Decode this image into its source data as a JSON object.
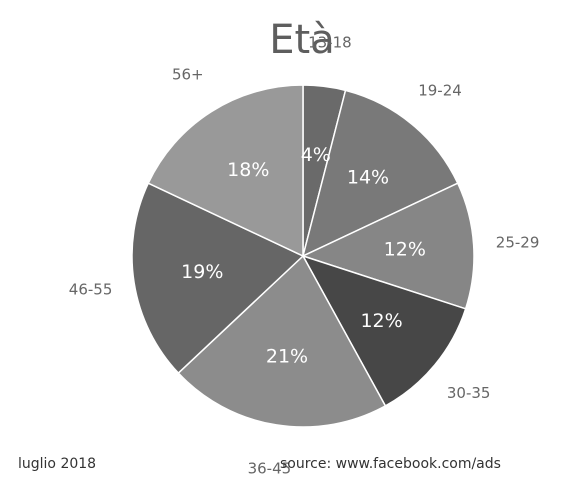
{
  "chart_data": {
    "type": "pie",
    "title": "Età",
    "categories": [
      "13-18",
      "19-24",
      "25-29",
      "30-35",
      "36-45",
      "46-55",
      "56+"
    ],
    "values": [
      4,
      14,
      12,
      12,
      21,
      19,
      18
    ],
    "value_labels": [
      "4%",
      "14%",
      "12%",
      "12%",
      "21%",
      "19%",
      "18%"
    ],
    "colors": [
      "#6a6a6a",
      "#797979",
      "#868686",
      "#474747",
      "#8c8c8c",
      "#666666",
      "#999999"
    ]
  },
  "footer": {
    "date": "luglio 2018",
    "source": "source: www.facebook.com/ads"
  }
}
